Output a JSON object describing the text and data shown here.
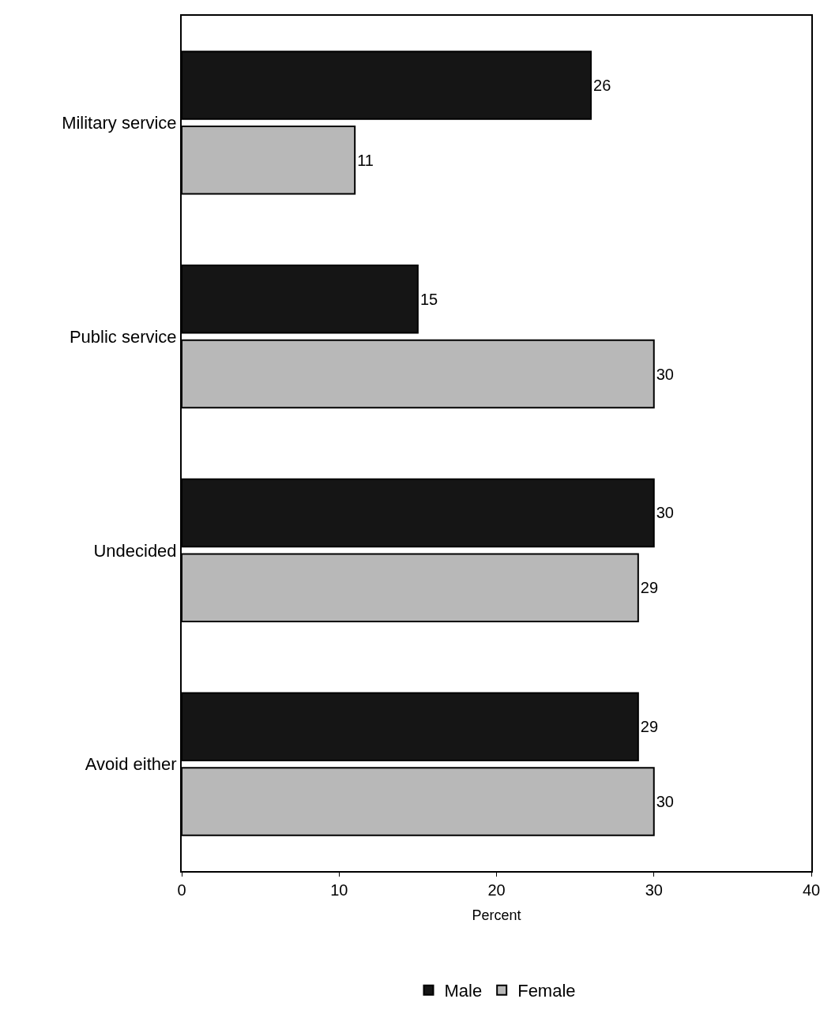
{
  "chart_data": {
    "type": "bar",
    "orientation": "horizontal",
    "xlabel": "Percent",
    "categories": [
      "Military service",
      "Public service",
      "Undecided",
      "Avoid either"
    ],
    "series": [
      {
        "name": "Male",
        "color": "#151515",
        "values": [
          26,
          15,
          30,
          29
        ]
      },
      {
        "name": "Female",
        "color": "#b8b8b8",
        "values": [
          11,
          30,
          29,
          30
        ]
      }
    ],
    "xlim": [
      0,
      40
    ],
    "xticks": [
      0,
      10,
      20,
      30,
      40
    ],
    "data_labels": true,
    "legend": "bottom"
  }
}
